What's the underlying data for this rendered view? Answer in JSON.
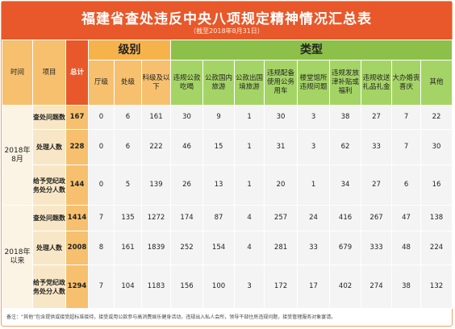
{
  "header": {
    "title": "福建省查处违反中央八项规定精神情况汇总表",
    "subtitle": "（截至2018年8月31日）"
  },
  "columns": {
    "time": "时间",
    "item": "项目",
    "total": "总计",
    "group_level": "级别",
    "group_type": "类型",
    "level": [
      "厅级",
      "处级",
      "科级及以下"
    ],
    "types": [
      "违规公款吃喝",
      "公款国内旅游",
      "公款出国境旅游",
      "违规配备使用公务用车",
      "楼堂馆所违规问题",
      "违规发放津补贴或福利",
      "违规收送礼品礼金",
      "大办婚丧喜庆",
      "其他"
    ]
  },
  "periods": [
    {
      "label": "2018年8月",
      "rows": [
        {
          "item": "查处问题数",
          "total": "167",
          "values": [
            "0",
            "6",
            "161",
            "30",
            "9",
            "1",
            "30",
            "3",
            "38",
            "27",
            "7",
            "22"
          ]
        },
        {
          "item": "处理人数",
          "total": "228",
          "values": [
            "0",
            "6",
            "222",
            "46",
            "15",
            "1",
            "31",
            "3",
            "62",
            "33",
            "7",
            "30"
          ]
        },
        {
          "item": "给予党纪政务处分人数",
          "total": "144",
          "values": [
            "0",
            "5",
            "139",
            "26",
            "13",
            "1",
            "20",
            "1",
            "34",
            "27",
            "6",
            "16"
          ]
        }
      ]
    },
    {
      "label": "2018年以来",
      "rows": [
        {
          "item": "查处问题数",
          "total": "1414",
          "values": [
            "7",
            "135",
            "1272",
            "174",
            "87",
            "4",
            "257",
            "24",
            "416",
            "267",
            "47",
            "138"
          ]
        },
        {
          "item": "处理人数",
          "total": "2008",
          "values": [
            "8",
            "161",
            "1839",
            "252",
            "154",
            "4",
            "281",
            "33",
            "679",
            "333",
            "48",
            "224"
          ]
        },
        {
          "item": "给予党纪政务处分人数",
          "total": "1294",
          "values": [
            "7",
            "104",
            "1183",
            "156",
            "100",
            "3",
            "172",
            "17",
            "402",
            "274",
            "38",
            "132"
          ]
        }
      ]
    }
  ],
  "footnote": "备注：“其他”包含提供或接受超标准接待，接受或用公款参与高消费娱乐健身活动，违规出入私人会所，领导干部住房违规问题，接受管理服务对象宴请。"
}
